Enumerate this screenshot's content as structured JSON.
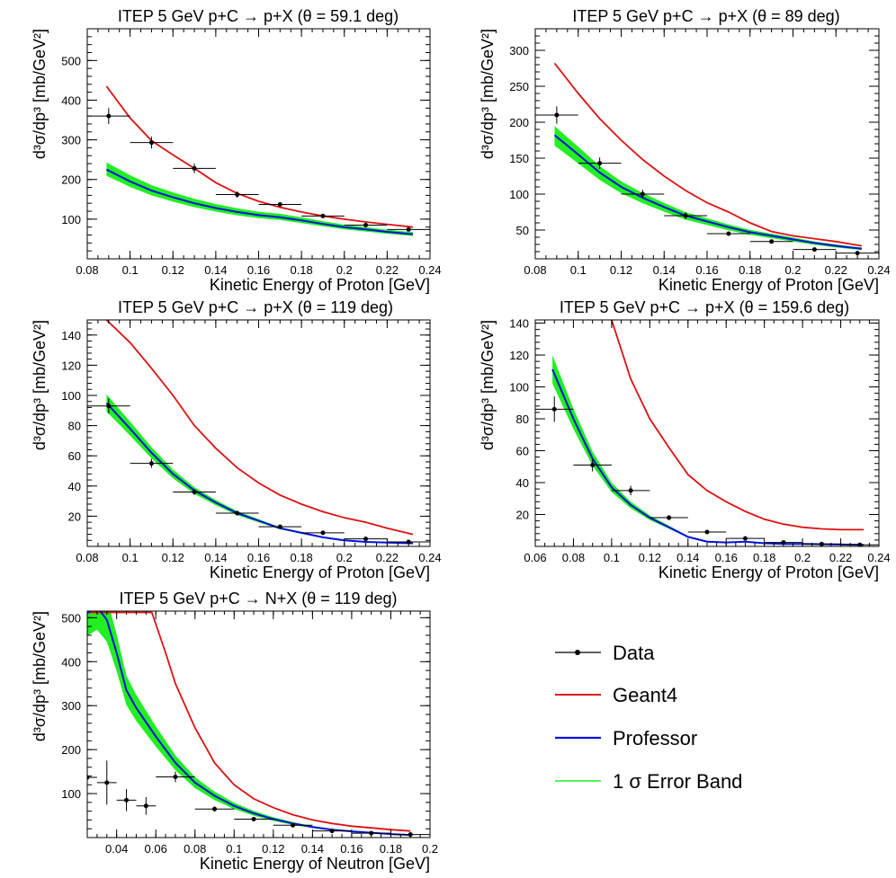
{
  "colors": {
    "data": "#000000",
    "geant4": "#dd1111",
    "professor": "#0011dd",
    "band": "#22ee22"
  },
  "legend": {
    "data": "Data",
    "geant4": "Geant4",
    "professor": "Professor",
    "band": "1 σ Error Band"
  },
  "chart_data": [
    {
      "type": "line",
      "title": "ITEP 5 GeV p+C → p+X (θ = 59.1 deg)",
      "xlabel": "Kinetic Energy of Proton [GeV]",
      "ylabel": "d³σ/dp³ [mb/GeV²]",
      "xlim": [
        0.08,
        0.24
      ],
      "ylim": [
        0,
        580
      ],
      "xticks": [
        0.08,
        0.1,
        0.12,
        0.14,
        0.16,
        0.18,
        0.2,
        0.22,
        0.24
      ],
      "xtick_labels": [
        "0.08",
        "0.1",
        "0.12",
        "0.14",
        "0.16",
        "0.18",
        "0.2",
        "0.22",
        "0.24"
      ],
      "yticks": [
        100,
        200,
        300,
        400,
        500
      ],
      "ytick_labels": [
        "100",
        "200",
        "300",
        "400",
        "500"
      ],
      "data": [
        [
          0.09,
          360,
          0.01,
          20
        ],
        [
          0.11,
          293,
          0.01,
          15
        ],
        [
          0.13,
          228,
          0.01,
          12
        ],
        [
          0.15,
          162,
          0.01,
          8
        ],
        [
          0.17,
          137,
          0.01,
          6
        ],
        [
          0.19,
          108,
          0.01,
          5
        ],
        [
          0.21,
          85,
          0.01,
          4
        ],
        [
          0.23,
          74,
          0.01,
          4
        ]
      ],
      "geant4": [
        [
          0.089,
          435
        ],
        [
          0.1,
          355
        ],
        [
          0.11,
          298
        ],
        [
          0.12,
          262
        ],
        [
          0.13,
          228
        ],
        [
          0.14,
          192
        ],
        [
          0.15,
          165
        ],
        [
          0.16,
          145
        ],
        [
          0.17,
          130
        ],
        [
          0.18,
          118
        ],
        [
          0.19,
          108
        ],
        [
          0.2,
          100
        ],
        [
          0.21,
          93
        ],
        [
          0.22,
          87
        ],
        [
          0.232,
          80
        ]
      ],
      "professor": [
        [
          0.089,
          225
        ],
        [
          0.1,
          195
        ],
        [
          0.11,
          172
        ],
        [
          0.12,
          155
        ],
        [
          0.13,
          140
        ],
        [
          0.14,
          128
        ],
        [
          0.15,
          118
        ],
        [
          0.16,
          110
        ],
        [
          0.17,
          105
        ],
        [
          0.18,
          97
        ],
        [
          0.19,
          88
        ],
        [
          0.2,
          80
        ],
        [
          0.21,
          74
        ],
        [
          0.22,
          68
        ],
        [
          0.232,
          62
        ]
      ],
      "band": [
        0.08,
        0.07
      ]
    },
    {
      "type": "line",
      "title": "ITEP 5 GeV p+C → p+X (θ = 89 deg)",
      "xlabel": "Kinetic Energy of Proton [GeV]",
      "ylabel": "d³σ/dp³ [mb/GeV²]",
      "xlim": [
        0.08,
        0.24
      ],
      "ylim": [
        10,
        330
      ],
      "xticks": [
        0.08,
        0.1,
        0.12,
        0.14,
        0.16,
        0.18,
        0.2,
        0.22,
        0.24
      ],
      "xtick_labels": [
        "0.08",
        "0.1",
        "0.12",
        "0.14",
        "0.16",
        "0.18",
        "0.2",
        "0.22",
        "0.24"
      ],
      "yticks": [
        50,
        100,
        150,
        200,
        250,
        300
      ],
      "ytick_labels": [
        "50",
        "100",
        "150",
        "200",
        "250",
        "300"
      ],
      "data": [
        [
          0.09,
          210,
          0.01,
          12
        ],
        [
          0.11,
          143,
          0.01,
          8
        ],
        [
          0.13,
          100,
          0.01,
          6
        ],
        [
          0.15,
          70,
          0.01,
          5
        ],
        [
          0.17,
          45,
          0.01,
          3
        ],
        [
          0.19,
          34,
          0.01,
          2
        ],
        [
          0.21,
          23,
          0.01,
          2
        ],
        [
          0.23,
          18,
          0.01,
          2
        ]
      ],
      "geant4": [
        [
          0.089,
          282
        ],
        [
          0.1,
          240
        ],
        [
          0.11,
          205
        ],
        [
          0.12,
          175
        ],
        [
          0.13,
          148
        ],
        [
          0.14,
          125
        ],
        [
          0.15,
          105
        ],
        [
          0.16,
          88
        ],
        [
          0.17,
          75
        ],
        [
          0.18,
          60
        ],
        [
          0.19,
          48
        ],
        [
          0.2,
          42
        ],
        [
          0.21,
          38
        ],
        [
          0.22,
          34
        ],
        [
          0.232,
          28
        ]
      ],
      "professor": [
        [
          0.089,
          182
        ],
        [
          0.1,
          155
        ],
        [
          0.11,
          130
        ],
        [
          0.12,
          110
        ],
        [
          0.13,
          95
        ],
        [
          0.14,
          82
        ],
        [
          0.15,
          70
        ],
        [
          0.16,
          62
        ],
        [
          0.17,
          54
        ],
        [
          0.18,
          47
        ],
        [
          0.19,
          42
        ],
        [
          0.2,
          37
        ],
        [
          0.21,
          32
        ],
        [
          0.22,
          28
        ],
        [
          0.232,
          24
        ]
      ],
      "band": [
        0.07,
        0.08
      ]
    },
    {
      "type": "line",
      "title": "ITEP 5 GeV p+C  → p+X (θ = 119 deg)",
      "xlabel": "Kinetic Energy of Proton [GeV]",
      "ylabel": "d³σ/dp³ [mb/GeV²]",
      "xlim": [
        0.08,
        0.24
      ],
      "ylim": [
        0,
        150
      ],
      "xticks": [
        0.08,
        0.1,
        0.12,
        0.14,
        0.16,
        0.18,
        0.2,
        0.22,
        0.24
      ],
      "xtick_labels": [
        "0.08",
        "0.1",
        "0.12",
        "0.14",
        "0.16",
        "0.18",
        "0.2",
        "0.22",
        "0.24"
      ],
      "yticks": [
        20,
        40,
        60,
        80,
        100,
        120,
        140
      ],
      "ytick_labels": [
        "20",
        "40",
        "60",
        "80",
        "100",
        "120",
        "140"
      ],
      "data": [
        [
          0.09,
          93,
          0.01,
          5
        ],
        [
          0.11,
          55,
          0.01,
          3
        ],
        [
          0.13,
          36,
          0.01,
          2
        ],
        [
          0.15,
          22,
          0.01,
          1.5
        ],
        [
          0.17,
          13,
          0.01,
          1
        ],
        [
          0.19,
          9,
          0.01,
          0.8
        ],
        [
          0.21,
          5,
          0.01,
          0.6
        ],
        [
          0.23,
          3,
          0.01,
          0.5
        ]
      ],
      "geant4": [
        [
          0.089,
          150
        ],
        [
          0.1,
          135
        ],
        [
          0.11,
          118
        ],
        [
          0.12,
          100
        ],
        [
          0.13,
          80
        ],
        [
          0.14,
          65
        ],
        [
          0.15,
          52
        ],
        [
          0.16,
          42
        ],
        [
          0.17,
          34
        ],
        [
          0.18,
          28
        ],
        [
          0.19,
          23
        ],
        [
          0.2,
          19
        ],
        [
          0.21,
          16
        ],
        [
          0.22,
          12
        ],
        [
          0.232,
          8
        ]
      ],
      "professor": [
        [
          0.089,
          95
        ],
        [
          0.1,
          78
        ],
        [
          0.11,
          62
        ],
        [
          0.12,
          48
        ],
        [
          0.13,
          37
        ],
        [
          0.14,
          29
        ],
        [
          0.15,
          22
        ],
        [
          0.16,
          17
        ],
        [
          0.17,
          12
        ],
        [
          0.18,
          9
        ],
        [
          0.19,
          6
        ],
        [
          0.2,
          4
        ],
        [
          0.21,
          3
        ],
        [
          0.22,
          2.5
        ],
        [
          0.232,
          2
        ]
      ],
      "band": [
        0.06,
        0.06
      ]
    },
    {
      "type": "line",
      "title": "ITEP 5 GeV p+C  → p+X (θ = 159.6 deg)",
      "xlabel": "Kinetic Energy of Proton [GeV]",
      "ylabel": "d³σ/dp³ [mb/GeV²]",
      "xlim": [
        0.06,
        0.24
      ],
      "ylim": [
        0,
        142
      ],
      "xticks": [
        0.06,
        0.08,
        0.1,
        0.12,
        0.14,
        0.16,
        0.18,
        0.2,
        0.22,
        0.24
      ],
      "xtick_labels": [
        "0.06",
        "0.08",
        "0.1",
        "0.12",
        "0.14",
        "0.16",
        "0.18",
        "0.2",
        "0.22",
        "0.24"
      ],
      "yticks": [
        20,
        40,
        60,
        80,
        100,
        120,
        140
      ],
      "ytick_labels": [
        "20",
        "40",
        "60",
        "80",
        "100",
        "120",
        "140"
      ],
      "data": [
        [
          0.07,
          86,
          0.01,
          8
        ],
        [
          0.09,
          51,
          0.01,
          4
        ],
        [
          0.11,
          35,
          0.01,
          3
        ],
        [
          0.13,
          18,
          0.01,
          1.5
        ],
        [
          0.15,
          9,
          0.01,
          1
        ],
        [
          0.17,
          5,
          0.01,
          0.8
        ],
        [
          0.19,
          2.5,
          0.01,
          0.5
        ],
        [
          0.21,
          1.5,
          0.01,
          0.4
        ],
        [
          0.23,
          1,
          0.01,
          0.3
        ]
      ],
      "geant4": [
        [
          0.1,
          142
        ],
        [
          0.11,
          105
        ],
        [
          0.12,
          80
        ],
        [
          0.13,
          62
        ],
        [
          0.14,
          45
        ],
        [
          0.15,
          35
        ],
        [
          0.16,
          28
        ],
        [
          0.17,
          22
        ],
        [
          0.18,
          17
        ],
        [
          0.19,
          14
        ],
        [
          0.2,
          12
        ],
        [
          0.21,
          11
        ],
        [
          0.22,
          10.5
        ],
        [
          0.232,
          10.5
        ]
      ],
      "professor": [
        [
          0.069,
          111
        ],
        [
          0.08,
          80
        ],
        [
          0.09,
          55
        ],
        [
          0.1,
          37
        ],
        [
          0.11,
          26
        ],
        [
          0.12,
          18
        ],
        [
          0.13,
          12
        ],
        [
          0.14,
          6
        ],
        [
          0.15,
          3
        ],
        [
          0.16,
          2.5
        ],
        [
          0.17,
          3
        ],
        [
          0.18,
          2
        ],
        [
          0.19,
          1.5
        ],
        [
          0.2,
          1.5
        ],
        [
          0.232,
          1
        ]
      ],
      "band": [
        0.08,
        0.08
      ]
    },
    {
      "type": "line",
      "title": "ITEP 5 GeV p+C → N+X (θ = 119 deg)",
      "xlabel": "Kinetic Energy of Neutron [GeV]",
      "ylabel": "d³σ/dp³ [mb/GeV²]",
      "xlim": [
        0.025,
        0.2
      ],
      "ylim": [
        0,
        515
      ],
      "xticks": [
        0.04,
        0.06,
        0.08,
        0.1,
        0.12,
        0.14,
        0.16,
        0.18,
        0.2
      ],
      "xtick_labels": [
        "0.04",
        "0.06",
        "0.08",
        "0.1",
        "0.12",
        "0.14",
        "0.16",
        "0.18",
        "0.2"
      ],
      "yticks": [
        100,
        200,
        300,
        400,
        500
      ],
      "ytick_labels": [
        "100",
        "200",
        "300",
        "400",
        "500"
      ],
      "data": [
        [
          0.025,
          137,
          0.005,
          85
        ],
        [
          0.035,
          125,
          0.005,
          50
        ],
        [
          0.045,
          85,
          0.005,
          25
        ],
        [
          0.055,
          72,
          0.005,
          20
        ],
        [
          0.07,
          138,
          0.01,
          12
        ],
        [
          0.09,
          65,
          0.01,
          6
        ],
        [
          0.11,
          42,
          0.01,
          4
        ],
        [
          0.13,
          28,
          0.01,
          3
        ],
        [
          0.15,
          15,
          0.01,
          2
        ],
        [
          0.17,
          10,
          0.01,
          2
        ],
        [
          0.19,
          7,
          0.01,
          1.5
        ]
      ],
      "geant4": [
        [
          0.025,
          512
        ],
        [
          0.03,
          512
        ],
        [
          0.035,
          512
        ],
        [
          0.04,
          512
        ],
        [
          0.05,
          512
        ],
        [
          0.058,
          512
        ],
        [
          0.065,
          420
        ],
        [
          0.07,
          350
        ],
        [
          0.08,
          250
        ],
        [
          0.09,
          170
        ],
        [
          0.1,
          120
        ],
        [
          0.11,
          88
        ],
        [
          0.12,
          68
        ],
        [
          0.13,
          52
        ],
        [
          0.14,
          40
        ],
        [
          0.15,
          32
        ],
        [
          0.16,
          26
        ],
        [
          0.17,
          22
        ],
        [
          0.18,
          18
        ],
        [
          0.19,
          15
        ]
      ],
      "professor": [
        [
          0.025,
          510
        ],
        [
          0.03,
          525
        ],
        [
          0.035,
          495
        ],
        [
          0.04,
          420
        ],
        [
          0.045,
          335
        ],
        [
          0.05,
          295
        ],
        [
          0.06,
          230
        ],
        [
          0.07,
          170
        ],
        [
          0.08,
          125
        ],
        [
          0.09,
          95
        ],
        [
          0.1,
          72
        ],
        [
          0.11,
          55
        ],
        [
          0.12,
          42
        ],
        [
          0.13,
          32
        ],
        [
          0.14,
          24
        ],
        [
          0.15,
          18
        ],
        [
          0.16,
          14
        ],
        [
          0.17,
          11
        ],
        [
          0.18,
          8
        ],
        [
          0.19,
          6
        ]
      ],
      "band": [
        0.1,
        0.1
      ]
    }
  ]
}
